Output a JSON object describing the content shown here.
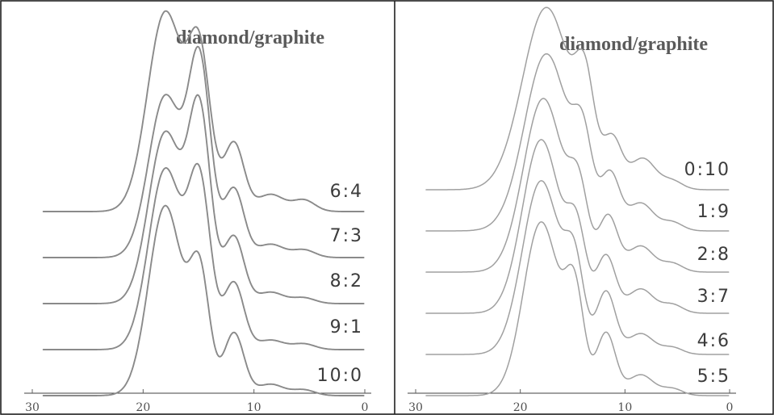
{
  "colors": {
    "trace_left": "#8a8a8a",
    "trace_right": "#a0a0a0",
    "frame": "#202020",
    "label": "#3c3c3c"
  },
  "chart_data": [
    {
      "type": "line",
      "title": "diamond/graphite",
      "xlabel": "",
      "ylabel": "",
      "xlim": [
        30,
        0
      ],
      "x_reversed": true,
      "y_offset_stacked": true,
      "grid": false,
      "legend": "none",
      "x_ticks": [
        "30",
        "20",
        "10",
        "0"
      ],
      "series": [
        {
          "name": "10:0",
          "offset": 0,
          "peaks": [
            {
              "x": 18.0,
              "h": 1.0,
              "w": 1.5
            },
            {
              "x": 14.9,
              "h": 0.62,
              "w": 0.9
            },
            {
              "x": 11.8,
              "h": 0.33,
              "w": 0.9
            },
            {
              "x": 8.5,
              "h": 0.06,
              "w": 1.2
            },
            {
              "x": 5.5,
              "h": 0.03,
              "w": 1.0
            }
          ]
        },
        {
          "name": "9:1",
          "offset": 1,
          "peaks": [
            {
              "x": 18.0,
              "h": 0.95,
              "w": 1.5
            },
            {
              "x": 14.9,
              "h": 0.85,
              "w": 1.0
            },
            {
              "x": 11.8,
              "h": 0.35,
              "w": 0.9
            },
            {
              "x": 8.5,
              "h": 0.05,
              "w": 1.2
            },
            {
              "x": 5.5,
              "h": 0.03,
              "w": 1.0
            }
          ]
        },
        {
          "name": "8:2",
          "offset": 2,
          "peaks": [
            {
              "x": 18.0,
              "h": 0.9,
              "w": 1.5
            },
            {
              "x": 14.9,
              "h": 0.98,
              "w": 1.0
            },
            {
              "x": 11.8,
              "h": 0.35,
              "w": 0.9
            },
            {
              "x": 8.5,
              "h": 0.06,
              "w": 1.2
            },
            {
              "x": 5.5,
              "h": 0.03,
              "w": 1.0
            }
          ]
        },
        {
          "name": "7:3",
          "offset": 3,
          "peaks": [
            {
              "x": 18.0,
              "h": 0.85,
              "w": 1.5
            },
            {
              "x": 14.9,
              "h": 1.0,
              "w": 1.0
            },
            {
              "x": 11.8,
              "h": 0.36,
              "w": 0.9
            },
            {
              "x": 8.5,
              "h": 0.07,
              "w": 1.2
            },
            {
              "x": 5.5,
              "h": 0.04,
              "w": 1.0
            }
          ]
        },
        {
          "name": "6:4",
          "offset": 4,
          "peaks": [
            {
              "x": 18.0,
              "h": 1.05,
              "w": 1.6
            },
            {
              "x": 14.9,
              "h": 0.78,
              "w": 1.0
            },
            {
              "x": 11.8,
              "h": 0.36,
              "w": 0.9
            },
            {
              "x": 8.5,
              "h": 0.09,
              "w": 1.2
            },
            {
              "x": 5.5,
              "h": 0.06,
              "w": 1.0
            }
          ]
        }
      ]
    },
    {
      "type": "line",
      "title": "diamond/graphite",
      "xlabel": "",
      "ylabel": "",
      "xlim": [
        30,
        0
      ],
      "x_reversed": true,
      "y_offset_stacked": true,
      "grid": false,
      "legend": "none",
      "x_ticks": [
        "30",
        "20",
        "10",
        "0"
      ],
      "series": [
        {
          "name": "5:5",
          "offset": 0,
          "peaks": [
            {
              "x": 18.0,
              "h": 1.0,
              "w": 1.7
            },
            {
              "x": 14.8,
              "h": 0.55,
              "w": 0.9
            },
            {
              "x": 11.8,
              "h": 0.36,
              "w": 0.9
            },
            {
              "x": 8.5,
              "h": 0.12,
              "w": 1.2
            },
            {
              "x": 5.5,
              "h": 0.04,
              "w": 1.0
            }
          ]
        },
        {
          "name": "4:6",
          "offset": 1,
          "peaks": [
            {
              "x": 18.0,
              "h": 1.0,
              "w": 1.8
            },
            {
              "x": 14.8,
              "h": 0.45,
              "w": 0.9
            },
            {
              "x": 11.8,
              "h": 0.36,
              "w": 0.9
            },
            {
              "x": 8.5,
              "h": 0.12,
              "w": 1.2
            },
            {
              "x": 5.5,
              "h": 0.04,
              "w": 1.0
            }
          ]
        },
        {
          "name": "3:7",
          "offset": 2,
          "peaks": [
            {
              "x": 18.0,
              "h": 1.0,
              "w": 1.8
            },
            {
              "x": 14.6,
              "h": 0.42,
              "w": 0.9
            },
            {
              "x": 11.8,
              "h": 0.33,
              "w": 0.9
            },
            {
              "x": 8.5,
              "h": 0.14,
              "w": 1.2
            },
            {
              "x": 5.5,
              "h": 0.05,
              "w": 1.0
            }
          ]
        },
        {
          "name": "2:8",
          "offset": 3,
          "peaks": [
            {
              "x": 17.8,
              "h": 1.0,
              "w": 1.9
            },
            {
              "x": 14.4,
              "h": 0.4,
              "w": 0.9
            },
            {
              "x": 11.6,
              "h": 0.32,
              "w": 0.9
            },
            {
              "x": 8.5,
              "h": 0.15,
              "w": 1.2
            },
            {
              "x": 5.5,
              "h": 0.05,
              "w": 1.0
            }
          ]
        },
        {
          "name": "1:9",
          "offset": 4,
          "peaks": [
            {
              "x": 17.5,
              "h": 1.02,
              "w": 2.1
            },
            {
              "x": 14.0,
              "h": 0.42,
              "w": 0.9
            },
            {
              "x": 11.4,
              "h": 0.32,
              "w": 0.9
            },
            {
              "x": 8.5,
              "h": 0.16,
              "w": 1.2
            },
            {
              "x": 5.5,
              "h": 0.05,
              "w": 1.0
            }
          ]
        },
        {
          "name": "0:10",
          "offset": 5,
          "peaks": [
            {
              "x": 17.5,
              "h": 1.05,
              "w": 2.3
            },
            {
              "x": 13.8,
              "h": 0.48,
              "w": 0.9
            },
            {
              "x": 11.2,
              "h": 0.28,
              "w": 0.9
            },
            {
              "x": 8.3,
              "h": 0.18,
              "w": 1.2
            },
            {
              "x": 5.5,
              "h": 0.05,
              "w": 1.0
            }
          ]
        }
      ]
    }
  ]
}
